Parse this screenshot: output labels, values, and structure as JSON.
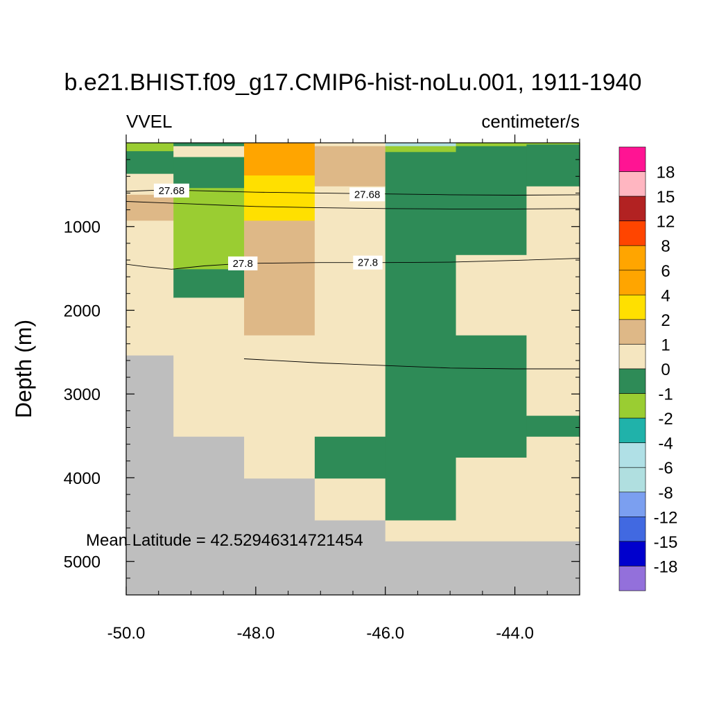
{
  "chart_data": {
    "type": "heatmap",
    "title": "b.e21.BHIST.f09_g17.CMIP6-hist-noLu.001, 1911-1940",
    "left_label": "VVEL",
    "right_label": "centimeter/s",
    "ylabel": "Depth (m)",
    "xlabel": "",
    "xlim": [
      -50.0,
      -43.0
    ],
    "ylim": [
      5400,
      0
    ],
    "x_ticks": [
      -50.0,
      -48.0,
      -46.0,
      -44.0
    ],
    "x_tick_labels": [
      "-50.0",
      "-48.0",
      "-46.0",
      "-44.0"
    ],
    "y_ticks": [
      1000,
      2000,
      3000,
      4000,
      5000
    ],
    "y_tick_labels": [
      "1000",
      "2000",
      "3000",
      "4000",
      "5000"
    ],
    "annotation": "Mean Latitude = 42.52946314721454",
    "missing_color": "#bebebe",
    "colorbar": {
      "labels": [
        "18",
        "15",
        "12",
        "8",
        "6",
        "4",
        "2",
        "1",
        "0",
        "-1",
        "-2",
        "-4",
        "-6",
        "-8",
        "-12",
        "-15",
        "-18"
      ],
      "colors": [
        "#ff1493",
        "#ffb6c1",
        "#b22222",
        "#ff4500",
        "#ffa500",
        "#ffa500",
        "#ffe000",
        "#deb887",
        "#f5e6c0",
        "#2e8b57",
        "#9acd32",
        "#20b2aa",
        "#b0e0e6",
        "#b0dfe0",
        "#7b9ff0",
        "#4169e1",
        "#0000cd",
        "#9370db"
      ]
    },
    "columns": [
      {
        "x0": -50.0,
        "x1": -49.27,
        "cells": [
          {
            "top": 0,
            "bottom": 100,
            "class": "-2 to -1"
          },
          {
            "top": 100,
            "bottom": 370,
            "class": "-1 to 0"
          },
          {
            "top": 370,
            "bottom": 620,
            "class": "0 to 1"
          },
          {
            "top": 620,
            "bottom": 930,
            "class": "1 to 2"
          },
          {
            "top": 930,
            "bottom": 2540,
            "class": "0 to 1"
          },
          {
            "top": 2540,
            "bottom": 5400,
            "class": "missing"
          }
        ]
      },
      {
        "x0": -49.27,
        "x1": -48.18,
        "cells": [
          {
            "top": 0,
            "bottom": 40,
            "class": "-1 to 0"
          },
          {
            "top": 40,
            "bottom": 170,
            "class": "0 to 1"
          },
          {
            "top": 170,
            "bottom": 540,
            "class": "-1 to 0"
          },
          {
            "top": 540,
            "bottom": 1510,
            "class": "-2 to -1"
          },
          {
            "top": 1510,
            "bottom": 1850,
            "class": "-1 to 0"
          },
          {
            "top": 1850,
            "bottom": 3510,
            "class": "0 to 1"
          },
          {
            "top": 3510,
            "bottom": 5400,
            "class": "missing"
          }
        ]
      },
      {
        "x0": -48.18,
        "x1": -47.09,
        "cells": [
          {
            "top": 0,
            "bottom": 390,
            "class": "4 to 6"
          },
          {
            "top": 390,
            "bottom": 930,
            "class": "2 to 4"
          },
          {
            "top": 930,
            "bottom": 2300,
            "class": "1 to 2"
          },
          {
            "top": 2300,
            "bottom": 4010,
            "class": "0 to 1"
          },
          {
            "top": 4010,
            "bottom": 5400,
            "class": "missing"
          }
        ]
      },
      {
        "x0": -47.09,
        "x1": -46.0,
        "cells": [
          {
            "top": 0,
            "bottom": 40,
            "class": "0 to 1"
          },
          {
            "top": 40,
            "bottom": 520,
            "class": "1 to 2"
          },
          {
            "top": 520,
            "bottom": 3510,
            "class": "0 to 1"
          },
          {
            "top": 3510,
            "bottom": 4010,
            "class": "-1 to 0"
          },
          {
            "top": 4010,
            "bottom": 4510,
            "class": "0 to 1"
          },
          {
            "top": 4510,
            "bottom": 5400,
            "class": "missing"
          }
        ]
      },
      {
        "x0": -46.0,
        "x1": -44.91,
        "cells": [
          {
            "top": 0,
            "bottom": 40,
            "class": "-8 to -6"
          },
          {
            "top": 40,
            "bottom": 110,
            "class": "-2 to -1"
          },
          {
            "top": 110,
            "bottom": 4510,
            "class": "-1 to 0"
          },
          {
            "top": 4510,
            "bottom": 4760,
            "class": "0 to 1"
          },
          {
            "top": 4760,
            "bottom": 5400,
            "class": "missing"
          }
        ]
      },
      {
        "x0": -44.91,
        "x1": -43.82,
        "cells": [
          {
            "top": 0,
            "bottom": 40,
            "class": "-2 to -1"
          },
          {
            "top": 40,
            "bottom": 1340,
            "class": "-1 to 0"
          },
          {
            "top": 1340,
            "bottom": 2300,
            "class": "0 to 1"
          },
          {
            "top": 2300,
            "bottom": 3760,
            "class": "-1 to 0"
          },
          {
            "top": 3760,
            "bottom": 4760,
            "class": "0 to 1"
          },
          {
            "top": 4760,
            "bottom": 5400,
            "class": "missing"
          }
        ]
      },
      {
        "x0": -43.82,
        "x1": -43.0,
        "cells": [
          {
            "top": 0,
            "bottom": 20,
            "class": "-2 to -1"
          },
          {
            "top": 20,
            "bottom": 520,
            "class": "-1 to 0"
          },
          {
            "top": 520,
            "bottom": 3260,
            "class": "0 to 1"
          },
          {
            "top": 3260,
            "bottom": 3510,
            "class": "-1 to 0"
          },
          {
            "top": 3510,
            "bottom": 4760,
            "class": "0 to 1"
          },
          {
            "top": 4760,
            "bottom": 5400,
            "class": "missing"
          }
        ]
      }
    ],
    "contours": [
      {
        "level": "27.68",
        "points": [
          [
            -50.0,
            580
          ],
          [
            -49.5,
            565
          ],
          [
            -49.0,
            570
          ],
          [
            -48.5,
            580
          ],
          [
            -48.0,
            590
          ],
          [
            -47.0,
            600
          ],
          [
            -46.0,
            610
          ],
          [
            -45.0,
            620
          ],
          [
            -44.0,
            625
          ],
          [
            -43.0,
            620
          ]
        ],
        "label_positions": [
          [
            -49.3,
            570
          ],
          [
            -46.28,
            615
          ]
        ]
      },
      {
        "level": "",
        "points": [
          [
            -50.0,
            700
          ],
          [
            -49.5,
            715
          ],
          [
            -49.0,
            730
          ],
          [
            -48.5,
            745
          ],
          [
            -48.0,
            760
          ],
          [
            -47.0,
            775
          ],
          [
            -46.0,
            785
          ],
          [
            -45.0,
            790
          ],
          [
            -44.0,
            790
          ],
          [
            -43.0,
            785
          ]
        ],
        "label_positions": []
      },
      {
        "level": "27.8",
        "points": [
          [
            -50.0,
            1450
          ],
          [
            -49.7,
            1480
          ],
          [
            -49.3,
            1510
          ],
          [
            -48.8,
            1470
          ],
          [
            -48.2,
            1440
          ],
          [
            -47.0,
            1430
          ],
          [
            -46.0,
            1430
          ],
          [
            -45.0,
            1425
          ],
          [
            -44.0,
            1405
          ],
          [
            -43.0,
            1380
          ]
        ],
        "label_positions": [
          [
            -48.2,
            1440
          ],
          [
            -46.27,
            1430
          ]
        ]
      },
      {
        "level": "",
        "points": [
          [
            -48.18,
            2580
          ],
          [
            -47.0,
            2630
          ],
          [
            -46.0,
            2660
          ],
          [
            -45.0,
            2690
          ],
          [
            -44.0,
            2700
          ],
          [
            -43.0,
            2700
          ]
        ],
        "label_positions": []
      }
    ]
  }
}
